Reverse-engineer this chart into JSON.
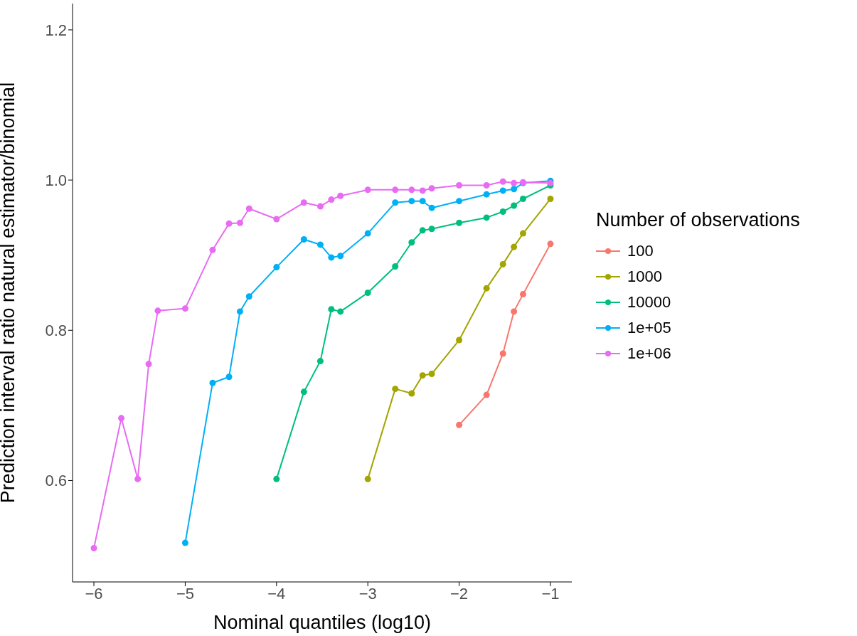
{
  "chart_data": {
    "type": "line",
    "xlabel": "Nominal quantiles (log10)",
    "ylabel": "Prediction interval ratio natural estimator/binomial",
    "legend_title": "Number of observations",
    "legend": "right",
    "marker": "circle",
    "line_style": "solid",
    "xlim": [
      -6.234,
      -0.766
    ],
    "ylim": [
      0.465,
      1.235
    ],
    "xticks": [
      {
        "value": -6,
        "label": "−6"
      },
      {
        "value": -5,
        "label": "−5"
      },
      {
        "value": -4,
        "label": "−4"
      },
      {
        "value": -3,
        "label": "−3"
      },
      {
        "value": -2,
        "label": "−2"
      },
      {
        "value": -1,
        "label": "−1"
      }
    ],
    "yticks": [
      0.6,
      0.8,
      {
        "value": 1,
        "label": "1.0"
      },
      1.2
    ],
    "series": [
      {
        "name": "100",
        "color": "#f8766d",
        "x": [
          -2,
          -1.7,
          -1.52,
          -1.4,
          -1.3,
          -1
        ],
        "values": [
          0.674,
          0.714,
          0.769,
          0.825,
          0.848,
          0.915
        ]
      },
      {
        "name": "1000",
        "color": "#a3a500",
        "x": [
          -3,
          -2.7,
          -2.52,
          -2.4,
          -2.3,
          -2,
          -1.7,
          -1.52,
          -1.4,
          -1.3,
          -1
        ],
        "values": [
          0.602,
          0.722,
          0.716,
          0.74,
          0.742,
          0.787,
          0.856,
          0.888,
          0.911,
          0.929,
          0.975
        ]
      },
      {
        "name": "10000",
        "color": "#00bf7d",
        "x": [
          -4,
          -3.7,
          -3.52,
          -3.4,
          -3.3,
          -3,
          -2.7,
          -2.52,
          -2.4,
          -2.3,
          -2,
          -1.7,
          -1.52,
          -1.4,
          -1.3,
          -1
        ],
        "values": [
          0.602,
          0.718,
          0.759,
          0.828,
          0.825,
          0.85,
          0.885,
          0.917,
          0.933,
          0.935,
          0.943,
          0.95,
          0.958,
          0.966,
          0.975,
          0.993
        ]
      },
      {
        "name": "1e+05",
        "color": "#00b0f6",
        "x": [
          -5,
          -4.7,
          -4.52,
          -4.4,
          -4.3,
          -4,
          -3.7,
          -3.52,
          -3.4,
          -3.3,
          -3,
          -2.7,
          -2.52,
          -2.4,
          -2.3,
          -2,
          -1.7,
          -1.52,
          -1.4,
          -1.3,
          -1
        ],
        "values": [
          0.517,
          0.73,
          0.738,
          0.825,
          0.845,
          0.884,
          0.921,
          0.914,
          0.897,
          0.899,
          0.929,
          0.97,
          0.972,
          0.972,
          0.963,
          0.972,
          0.981,
          0.986,
          0.988,
          0.996,
          0.999
        ]
      },
      {
        "name": "1e+06",
        "color": "#e76bf3",
        "x": [
          -6,
          -5.7,
          -5.52,
          -5.4,
          -5.3,
          -5,
          -4.7,
          -4.52,
          -4.4,
          -4.3,
          -4,
          -3.7,
          -3.52,
          -3.4,
          -3.3,
          -3,
          -2.7,
          -2.52,
          -2.4,
          -2.3,
          -2,
          -1.7,
          -1.52,
          -1.4,
          -1.3,
          -1
        ],
        "values": [
          0.51,
          0.683,
          0.602,
          0.755,
          0.826,
          0.829,
          0.907,
          0.942,
          0.943,
          0.962,
          0.948,
          0.97,
          0.965,
          0.974,
          0.979,
          0.987,
          0.987,
          0.987,
          0.986,
          0.989,
          0.993,
          0.993,
          0.998,
          0.996,
          0.997,
          0.996
        ]
      }
    ]
  }
}
